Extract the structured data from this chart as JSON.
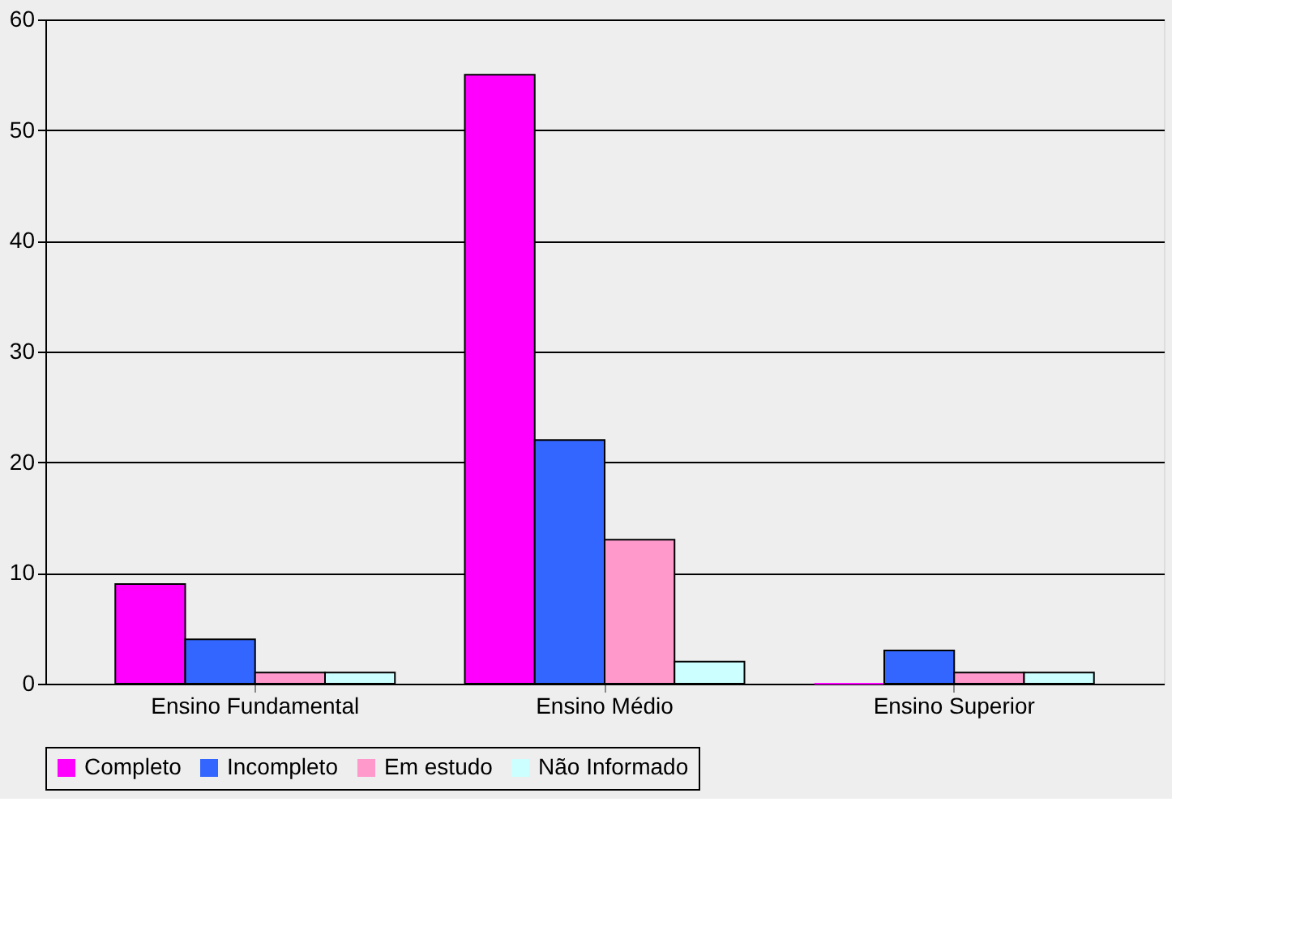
{
  "chart_data": {
    "type": "bar",
    "categories": [
      "Ensino Fundamental",
      "Ensino Médio",
      "Ensino Superior"
    ],
    "series": [
      {
        "name": "Completo",
        "color": "#ff00ff",
        "values": [
          9,
          55,
          0
        ]
      },
      {
        "name": "Incompleto",
        "color": "#3366ff",
        "values": [
          4,
          22,
          3
        ]
      },
      {
        "name": "Em estudo",
        "color": "#ff99cc",
        "values": [
          1,
          13,
          1
        ]
      },
      {
        "name": "Não Informado",
        "color": "#ccffff",
        "values": [
          1,
          2,
          1
        ]
      }
    ],
    "ylim": [
      0,
      60
    ],
    "yticks": [
      0,
      10,
      20,
      30,
      40,
      50,
      60
    ],
    "grid": "y",
    "legend": "bottom"
  }
}
